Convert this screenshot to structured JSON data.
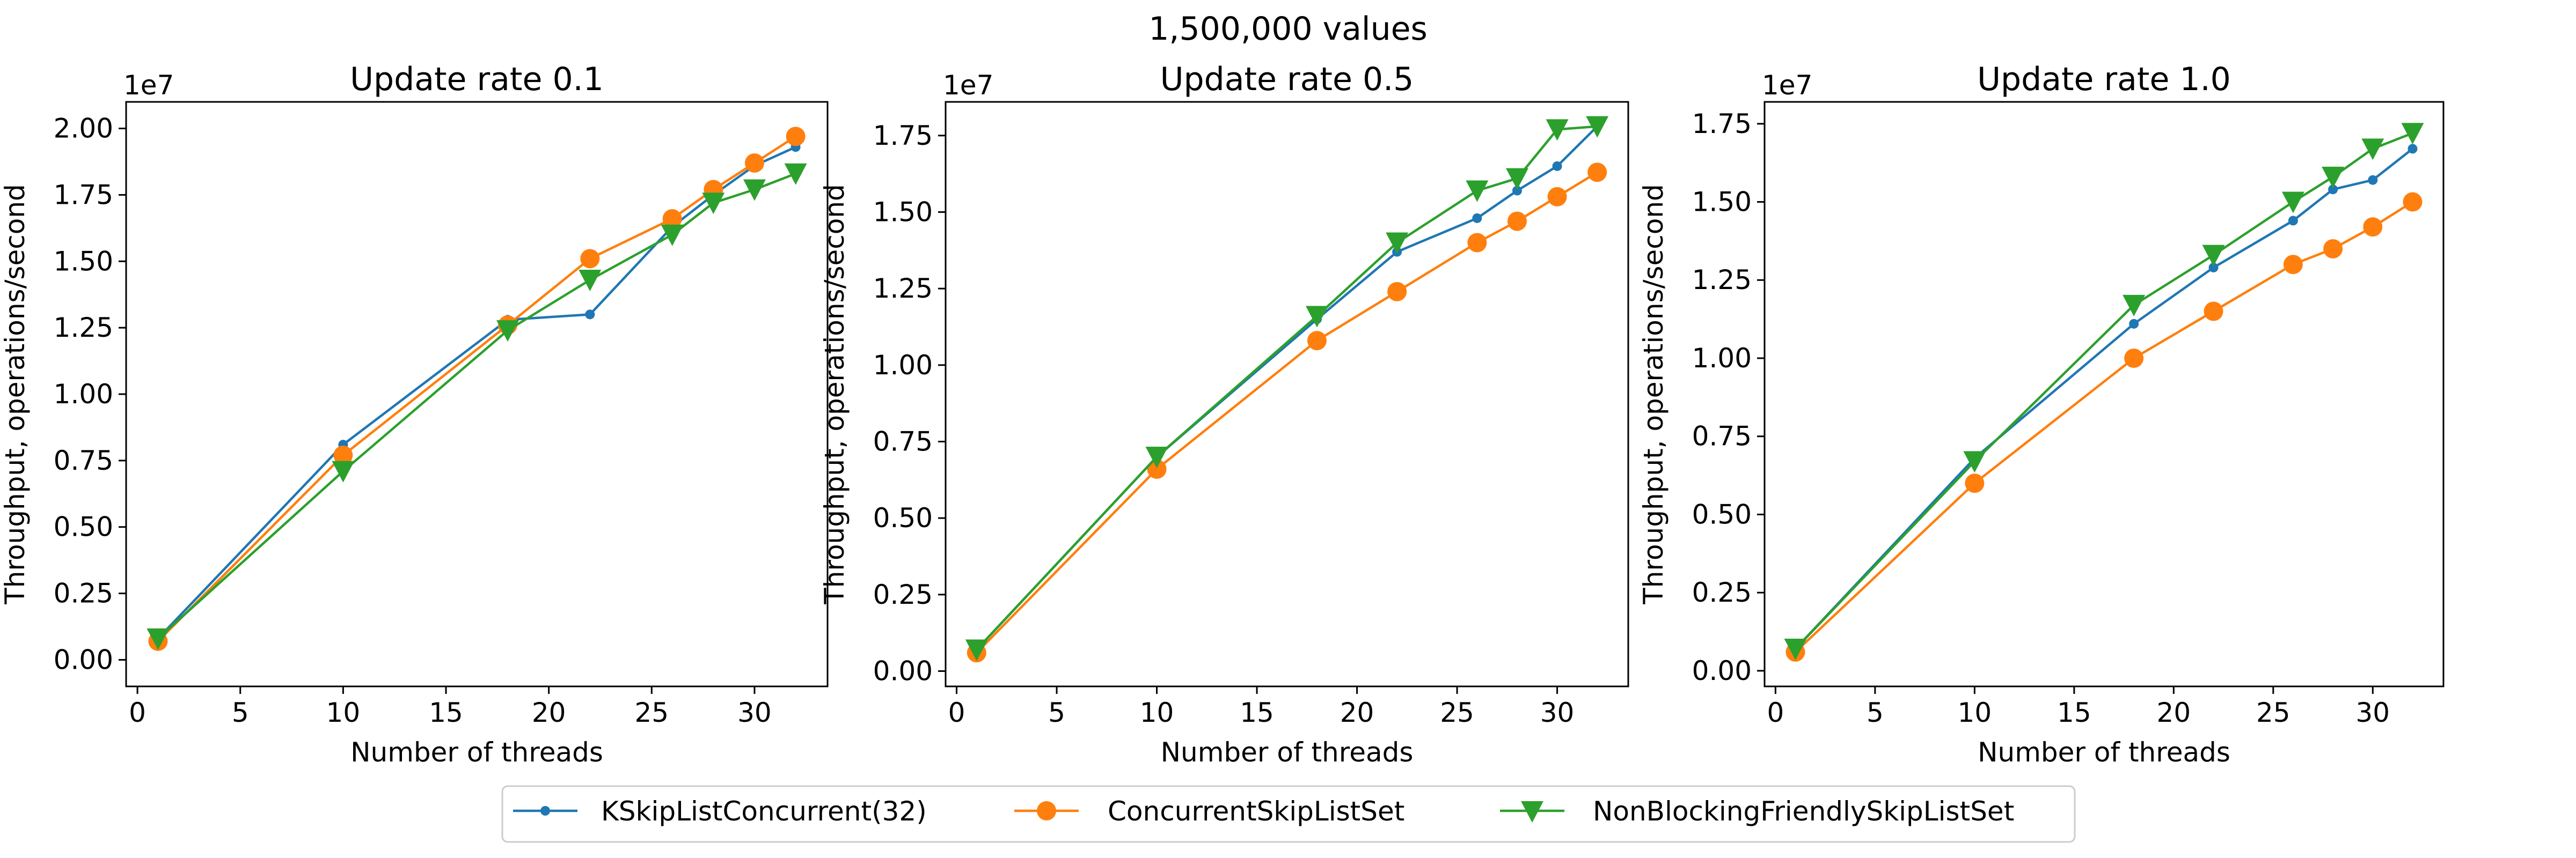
{
  "figure": {
    "suptitle": "1,500,000 values"
  },
  "legend": {
    "placement": "bottom-center",
    "entries": [
      {
        "name": "KSkipListConcurrent(32)",
        "color": "#1f77b4",
        "marker": "point"
      },
      {
        "name": "ConcurrentSkipListSet",
        "color": "#ff7f0e",
        "marker": "circle"
      },
      {
        "name": "NonBlockingFriendlySkipListSet",
        "color": "#2ca02c",
        "marker": "triangle-down"
      }
    ]
  },
  "chart_data": [
    {
      "type": "line",
      "title": "Update rate 0.1",
      "xlabel": "Number of threads",
      "ylabel": "Throughput, operations/second",
      "y_offset_label": "1e7",
      "xlim": [
        -0.55,
        33.55
      ],
      "ylim": [
        -0.1,
        2.1
      ],
      "xticks": [
        0,
        5,
        10,
        15,
        20,
        25,
        30
      ],
      "xtick_labels": [
        "0",
        "5",
        "10",
        "15",
        "20",
        "25",
        "30"
      ],
      "yticks": [
        0,
        0.25,
        0.5,
        0.75,
        1.0,
        1.25,
        1.5,
        1.75,
        2.0
      ],
      "ytick_labels": [
        "0.00",
        "0.25",
        "0.50",
        "0.75",
        "1.00",
        "1.25",
        "1.50",
        "1.75",
        "2.00"
      ],
      "grid": false,
      "x": [
        1,
        10,
        18,
        22,
        26,
        28,
        30,
        32
      ],
      "series": [
        {
          "name": "KSkipListConcurrent(32)",
          "values": [
            0.08,
            0.81,
            1.28,
            1.3,
            1.63,
            1.75,
            1.86,
            1.93
          ]
        },
        {
          "name": "ConcurrentSkipListSet",
          "values": [
            0.07,
            0.77,
            1.26,
            1.51,
            1.66,
            1.77,
            1.87,
            1.97
          ]
        },
        {
          "name": "NonBlockingFriendlySkipListSet",
          "values": [
            0.08,
            0.71,
            1.24,
            1.43,
            1.6,
            1.72,
            1.77,
            1.83
          ]
        }
      ]
    },
    {
      "type": "line",
      "title": "Update rate 0.5",
      "xlabel": "Number of threads",
      "ylabel": "Throughput, operations/second",
      "y_offset_label": "1e7",
      "xlim": [
        -0.55,
        33.55
      ],
      "ylim": [
        -0.05,
        1.86
      ],
      "xticks": [
        0,
        5,
        10,
        15,
        20,
        25,
        30
      ],
      "xtick_labels": [
        "0",
        "5",
        "10",
        "15",
        "20",
        "25",
        "30"
      ],
      "yticks": [
        0,
        0.25,
        0.5,
        0.75,
        1.0,
        1.25,
        1.5,
        1.75
      ],
      "ytick_labels": [
        "0.00",
        "0.25",
        "0.50",
        "0.75",
        "1.00",
        "1.25",
        "1.50",
        "1.75"
      ],
      "grid": false,
      "x": [
        1,
        10,
        18,
        22,
        26,
        28,
        30,
        32
      ],
      "series": [
        {
          "name": "KSkipListConcurrent(32)",
          "values": [
            0.07,
            0.7,
            1.15,
            1.37,
            1.48,
            1.57,
            1.65,
            1.78
          ]
        },
        {
          "name": "ConcurrentSkipListSet",
          "values": [
            0.06,
            0.66,
            1.08,
            1.24,
            1.4,
            1.47,
            1.55,
            1.63
          ]
        },
        {
          "name": "NonBlockingFriendlySkipListSet",
          "values": [
            0.07,
            0.7,
            1.16,
            1.4,
            1.57,
            1.61,
            1.77,
            1.78
          ]
        }
      ]
    },
    {
      "type": "line",
      "title": "Update rate 1.0",
      "xlabel": "Number of threads",
      "ylabel": "Throughput, operations/second",
      "y_offset_label": "1e7",
      "xlim": [
        -0.55,
        33.55
      ],
      "ylim": [
        -0.05,
        1.82
      ],
      "xticks": [
        0,
        5,
        10,
        15,
        20,
        25,
        30
      ],
      "xtick_labels": [
        "0",
        "5",
        "10",
        "15",
        "20",
        "25",
        "30"
      ],
      "yticks": [
        0,
        0.25,
        0.5,
        0.75,
        1.0,
        1.25,
        1.5,
        1.75
      ],
      "ytick_labels": [
        "0.00",
        "0.25",
        "0.50",
        "0.75",
        "1.00",
        "1.25",
        "1.50",
        "1.75"
      ],
      "grid": false,
      "x": [
        1,
        10,
        18,
        22,
        26,
        28,
        30,
        32
      ],
      "series": [
        {
          "name": "KSkipListConcurrent(32)",
          "values": [
            0.07,
            0.68,
            1.11,
            1.29,
            1.44,
            1.54,
            1.57,
            1.67
          ]
        },
        {
          "name": "ConcurrentSkipListSet",
          "values": [
            0.06,
            0.6,
            1.0,
            1.15,
            1.3,
            1.35,
            1.42,
            1.5
          ]
        },
        {
          "name": "NonBlockingFriendlySkipListSet",
          "values": [
            0.07,
            0.67,
            1.17,
            1.33,
            1.5,
            1.58,
            1.67,
            1.72
          ]
        }
      ]
    }
  ]
}
